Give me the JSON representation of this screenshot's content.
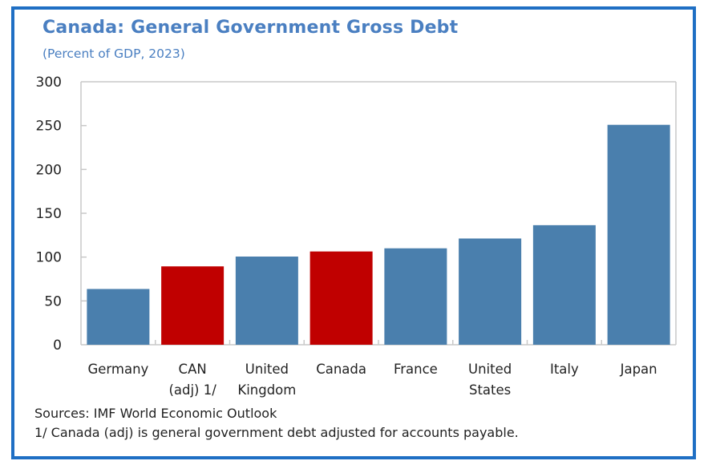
{
  "chart_data": {
    "type": "bar",
    "title": "Canada: General Government Gross Debt",
    "subtitle": "(Percent of GDP, 2023)",
    "xlabel": "",
    "ylabel": "",
    "ylim": [
      0,
      300
    ],
    "yticks": [
      0,
      50,
      100,
      150,
      200,
      250,
      300
    ],
    "grid": false,
    "legend": null,
    "categories": [
      [
        "Germany"
      ],
      [
        "CAN",
        "(adj) 1/"
      ],
      [
        "United",
        "Kingdom"
      ],
      [
        "Canada"
      ],
      [
        "France"
      ],
      [
        "United",
        "States"
      ],
      [
        "Italy"
      ],
      [
        "Japan"
      ]
    ],
    "category_names": [
      "Germany",
      "CAN (adj) 1/",
      "United Kingdom",
      "Canada",
      "France",
      "United States",
      "Italy",
      "Japan"
    ],
    "values": [
      63.6,
      89.4,
      100.6,
      106.4,
      110.0,
      121.2,
      136.4,
      250.9
    ],
    "highlight": [
      false,
      true,
      false,
      true,
      false,
      false,
      false,
      false
    ],
    "colors": {
      "default": "#4a7fad",
      "highlight": "#c00000",
      "title": "#4a7fc1",
      "frame": "#1f6fc4",
      "axis": "#c8c8c8"
    }
  },
  "footer": {
    "sources": "Sources: IMF World Economic Outlook",
    "note": "1/ Canada (adj) is general government debt adjusted for accounts payable."
  }
}
